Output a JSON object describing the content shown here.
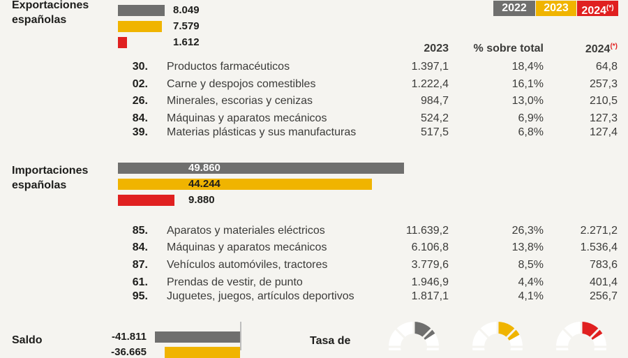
{
  "legend": {
    "y2022": "2022",
    "y2023": "2023",
    "y2024": "2024",
    "asterisk": "(*)",
    "colors": {
      "y2022": "#6f6f6e",
      "y2023": "#f0b400",
      "y2024": "#e02020"
    }
  },
  "exports": {
    "title_line1": "Exportaciones",
    "title_line2": "españolas",
    "header_2023": "2023",
    "header_pct": "% sobre total",
    "header_2024": "2024",
    "rows": [
      {
        "code": "30.",
        "name": "Productos farmacéuticos",
        "v2023": "1.397,1",
        "pct": "18,4%",
        "v2024": "64,8"
      },
      {
        "code": "02.",
        "name": "Carne y despojos comestibles",
        "v2023": "1.222,4",
        "pct": "16,1%",
        "v2024": "257,3"
      },
      {
        "code": "26.",
        "name": "Minerales, escorias y cenizas",
        "v2023": "984,7",
        "pct": "13,0%",
        "v2024": "210,5"
      },
      {
        "code": "84.",
        "name": "Máquinas y aparatos mecánicos",
        "v2023": "524,2",
        "pct": "6,9%",
        "v2024": "127,3"
      },
      {
        "code": "39.",
        "name": "Materias plásticas y sus manufacturas",
        "v2023": "517,5",
        "pct": "6,8%",
        "v2024": "127,4"
      }
    ]
  },
  "imports": {
    "title_line1": "Importaciones",
    "title_line2": "españolas",
    "rows": [
      {
        "code": "85.",
        "name": "Aparatos y materiales eléctricos",
        "v2023": "11.639,2",
        "pct": "26,3%",
        "v2024": "2.271,2"
      },
      {
        "code": "84.",
        "name": "Máquinas y aparatos mecánicos",
        "v2023": "6.106,8",
        "pct": "13,8%",
        "v2024": "1.536,4"
      },
      {
        "code": "87.",
        "name": "Vehículos automóviles, tractores",
        "v2023": "3.779,6",
        "pct": "8,5%",
        "v2024": "783,6"
      },
      {
        "code": "61.",
        "name": "Prendas de vestir, de punto",
        "v2023": "1.946,9",
        "pct": "4,4%",
        "v2024": "401,4"
      },
      {
        "code": "95.",
        "name": "Juguetes, juegos, artículos deportivos",
        "v2023": "1.817,1",
        "pct": "4,1%",
        "v2024": "256,7"
      }
    ]
  },
  "saldo": {
    "title": "Saldo",
    "v2022": "-41.811",
    "v2023_partial": "-36.665",
    "tasa_label": "Tasa de"
  },
  "chart_data": [
    {
      "type": "bar",
      "title": "Exportaciones españolas",
      "categories": [
        "2022",
        "2023",
        "2024"
      ],
      "values": [
        8049,
        7579,
        1612
      ],
      "labels": [
        "8.049",
        "7.579",
        "1.612"
      ]
    },
    {
      "type": "bar",
      "title": "Importaciones españolas",
      "categories": [
        "2022",
        "2023",
        "2024"
      ],
      "values": [
        49860,
        44244,
        9880
      ],
      "labels": [
        "49.860",
        "44.244",
        "9.880"
      ]
    },
    {
      "type": "bar",
      "title": "Saldo",
      "categories": [
        "2022",
        "2023"
      ],
      "values": [
        -41811,
        -36665
      ]
    },
    {
      "type": "pie",
      "categories": [
        "2022",
        "2023",
        "2024"
      ],
      "values": [
        0.16,
        0.17,
        0.16
      ]
    }
  ]
}
